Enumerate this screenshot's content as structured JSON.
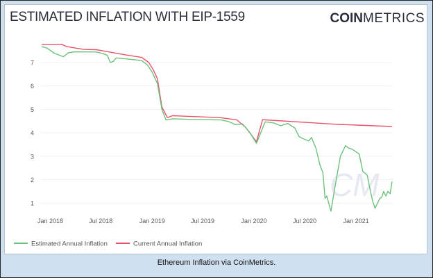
{
  "figure": {
    "title": "ESTIMATED INFLATION WITH EIP-1559",
    "logo_bold": "COIN",
    "logo_light": "METRICS",
    "watermark": "CM",
    "caption": "Ethereum Inflation via CoinMetrics."
  },
  "chart_data": {
    "type": "line",
    "title": "ESTIMATED INFLATION WITH EIP-1559",
    "xlabel": "",
    "ylabel": "",
    "xlim": [
      "2017-12-01",
      "2021-05-10"
    ],
    "ylim": [
      0.5,
      7.9
    ],
    "grid": true,
    "legend_placement": "bottom-left",
    "x_ticks": [
      {
        "date": "2018-01-01",
        "label": "Jan 2018"
      },
      {
        "date": "2018-07-01",
        "label": "Jul 2018"
      },
      {
        "date": "2019-01-01",
        "label": "Jan 2019"
      },
      {
        "date": "2019-07-01",
        "label": "Jul 2019"
      },
      {
        "date": "2020-01-01",
        "label": "Jan 2020"
      },
      {
        "date": "2020-07-01",
        "label": "Jul 2020"
      },
      {
        "date": "2021-01-01",
        "label": "Jan 2021"
      }
    ],
    "y_ticks": [
      1,
      2,
      3,
      4,
      5,
      6,
      7
    ],
    "series": [
      {
        "name": "Estimated Annual Inflation",
        "color": "#6cc27a",
        "points": [
          [
            "2017-12-01",
            7.68
          ],
          [
            "2017-12-20",
            7.62
          ],
          [
            "2018-01-15",
            7.4
          ],
          [
            "2018-02-17",
            7.25
          ],
          [
            "2018-03-07",
            7.42
          ],
          [
            "2018-04-01",
            7.46
          ],
          [
            "2018-06-15",
            7.45
          ],
          [
            "2018-07-10",
            7.38
          ],
          [
            "2018-07-25",
            7.3
          ],
          [
            "2018-08-04",
            7.0
          ],
          [
            "2018-08-15",
            7.05
          ],
          [
            "2018-08-25",
            7.2
          ],
          [
            "2018-09-20",
            7.17
          ],
          [
            "2018-11-01",
            7.12
          ],
          [
            "2018-11-25",
            7.08
          ],
          [
            "2018-12-15",
            6.9
          ],
          [
            "2019-01-01",
            6.6
          ],
          [
            "2019-01-20",
            6.1
          ],
          [
            "2019-02-05",
            5.0
          ],
          [
            "2019-02-20",
            4.55
          ],
          [
            "2019-03-15",
            4.6
          ],
          [
            "2019-06-01",
            4.57
          ],
          [
            "2019-09-06",
            4.55
          ],
          [
            "2019-10-02",
            4.48
          ],
          [
            "2019-10-27",
            4.35
          ],
          [
            "2019-11-21",
            4.38
          ],
          [
            "2019-12-15",
            4.05
          ],
          [
            "2020-01-10",
            3.55
          ],
          [
            "2020-02-10",
            4.47
          ],
          [
            "2020-03-12",
            4.42
          ],
          [
            "2020-04-06",
            4.3
          ],
          [
            "2020-05-01",
            4.4
          ],
          [
            "2020-05-27",
            4.2
          ],
          [
            "2020-06-10",
            3.85
          ],
          [
            "2020-06-25",
            3.75
          ],
          [
            "2020-07-15",
            3.65
          ],
          [
            "2020-07-25",
            3.8
          ],
          [
            "2020-08-10",
            3.35
          ],
          [
            "2020-08-25",
            2.6
          ],
          [
            "2020-09-04",
            2.3
          ],
          [
            "2020-09-12",
            1.2
          ],
          [
            "2020-09-18",
            1.3
          ],
          [
            "2020-10-03",
            0.65
          ],
          [
            "2020-10-16",
            1.6
          ],
          [
            "2020-10-28",
            2.4
          ],
          [
            "2020-11-06",
            3.0
          ],
          [
            "2020-11-24",
            3.45
          ],
          [
            "2020-12-05",
            3.35
          ],
          [
            "2020-12-18",
            3.3
          ],
          [
            "2021-01-12",
            3.1
          ],
          [
            "2021-01-25",
            2.35
          ],
          [
            "2021-02-10",
            2.2
          ],
          [
            "2021-02-20",
            1.6
          ],
          [
            "2021-03-01",
            1.1
          ],
          [
            "2021-03-10",
            0.78
          ],
          [
            "2021-03-27",
            1.2
          ],
          [
            "2021-04-03",
            1.25
          ],
          [
            "2021-04-10",
            1.5
          ],
          [
            "2021-04-18",
            1.3
          ],
          [
            "2021-04-25",
            1.5
          ],
          [
            "2021-05-03",
            1.4
          ],
          [
            "2021-05-10",
            1.92
          ]
        ]
      },
      {
        "name": "Current Annual Inflation",
        "color": "#e8536b",
        "points": [
          [
            "2017-12-01",
            7.77
          ],
          [
            "2018-01-15",
            7.77
          ],
          [
            "2018-02-10",
            7.78
          ],
          [
            "2018-03-01",
            7.68
          ],
          [
            "2018-05-01",
            7.56
          ],
          [
            "2018-06-15",
            7.55
          ],
          [
            "2018-08-01",
            7.45
          ],
          [
            "2018-10-01",
            7.32
          ],
          [
            "2018-11-25",
            7.22
          ],
          [
            "2018-12-20",
            7.0
          ],
          [
            "2019-01-05",
            6.7
          ],
          [
            "2019-01-20",
            6.3
          ],
          [
            "2019-02-05",
            5.1
          ],
          [
            "2019-02-25",
            4.65
          ],
          [
            "2019-03-15",
            4.73
          ],
          [
            "2019-09-01",
            4.65
          ],
          [
            "2019-11-01",
            4.55
          ],
          [
            "2019-12-01",
            4.25
          ],
          [
            "2020-01-10",
            3.62
          ],
          [
            "2020-02-01",
            4.56
          ],
          [
            "2020-10-01",
            4.38
          ],
          [
            "2020-11-01",
            4.36
          ],
          [
            "2021-05-10",
            4.27
          ]
        ]
      }
    ]
  }
}
